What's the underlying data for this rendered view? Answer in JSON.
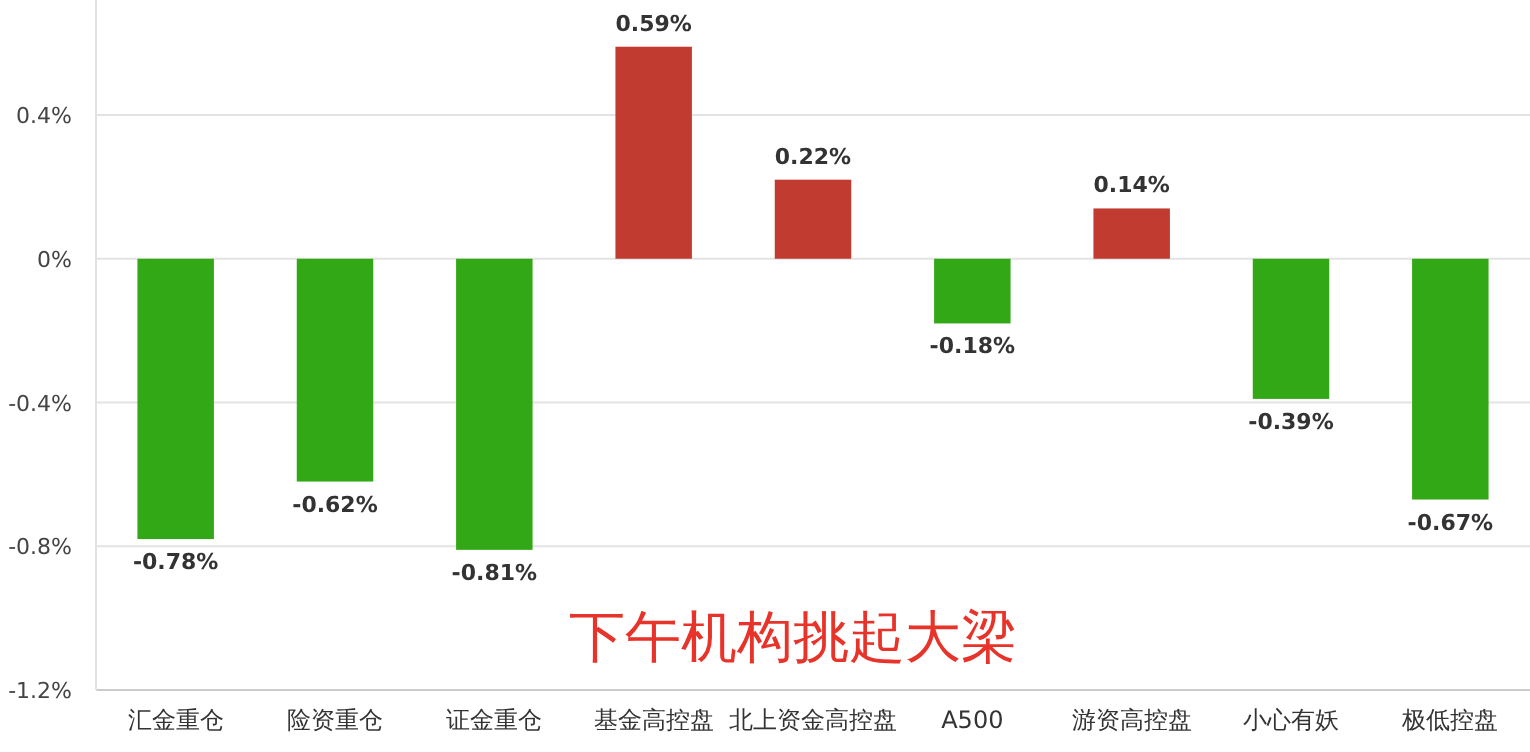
{
  "chart_data": {
    "type": "bar",
    "categories": [
      "汇金重仓",
      "险资重仓",
      "证金重仓",
      "基金高控盘",
      "北上资金高控盘",
      "A500",
      "游资高控盘",
      "小心有妖",
      "极低控盘"
    ],
    "values": [
      -0.78,
      -0.62,
      -0.81,
      0.59,
      0.22,
      -0.18,
      0.14,
      -0.39,
      -0.67
    ],
    "colors": [
      "#33a816",
      "#33a816",
      "#33a816",
      "#c23b30",
      "#c23b30",
      "#33a816",
      "#c23b30",
      "#33a816",
      "#33a816"
    ],
    "value_labels": [
      "-0.78%",
      "-0.62%",
      "-0.81%",
      "0.59%",
      "0.22%",
      "-0.18%",
      "0.14%",
      "-0.39%",
      "-0.67%"
    ],
    "ylim": [
      -1.2,
      0.72
    ],
    "yticks": [
      {
        "value": -1.2,
        "label": "-1.2%"
      },
      {
        "value": -0.8,
        "label": "-0.8%"
      },
      {
        "value": -0.4,
        "label": "-0.4%"
      },
      {
        "value": 0,
        "label": "0%"
      },
      {
        "value": 0.4,
        "label": "0.4%"
      }
    ],
    "grid": "y",
    "annotations": [
      "下午机构挑起大梁"
    ]
  }
}
